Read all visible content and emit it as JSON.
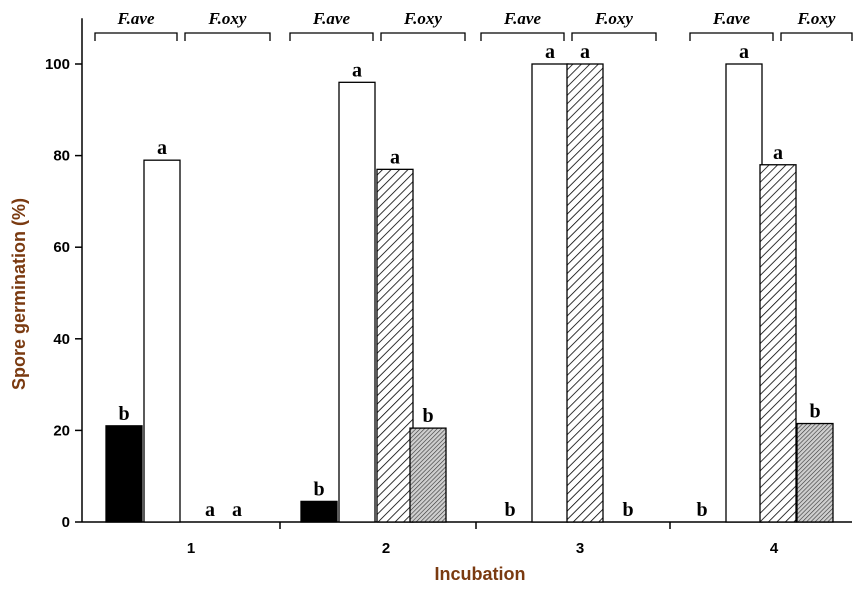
{
  "chart_data": {
    "type": "bar",
    "title": "",
    "xlabel": "Incubation",
    "ylabel": "Spore germination (%)",
    "ylim": [
      0,
      110
    ],
    "yticks": [
      0,
      20,
      40,
      60,
      80,
      100
    ],
    "categories": [
      "1",
      "2",
      "3",
      "4"
    ],
    "group_labels": [
      "F.ave",
      "F.oxy"
    ],
    "series": [
      {
        "group": "F.ave",
        "values": [
          21,
          4.5,
          0,
          0
        ],
        "letters": [
          "b",
          "b",
          "b",
          "b"
        ],
        "fill": "solid-black"
      },
      {
        "group": "F.ave",
        "values": [
          79,
          96,
          100,
          100
        ],
        "letters": [
          "a",
          "a",
          "a",
          "a"
        ],
        "fill": "white"
      },
      {
        "group": "F.oxy",
        "values": [
          0,
          77,
          100,
          78
        ],
        "letters": [
          "a",
          "a",
          "a",
          "a"
        ],
        "fill": "diagonal-hatch"
      },
      {
        "group": "F.oxy",
        "values": [
          0,
          20.5,
          0,
          21.5
        ],
        "letters": [
          "a",
          "b",
          "b",
          "b"
        ],
        "fill": "dense-gray-hatch"
      }
    ],
    "grid": false,
    "legend": "none"
  }
}
